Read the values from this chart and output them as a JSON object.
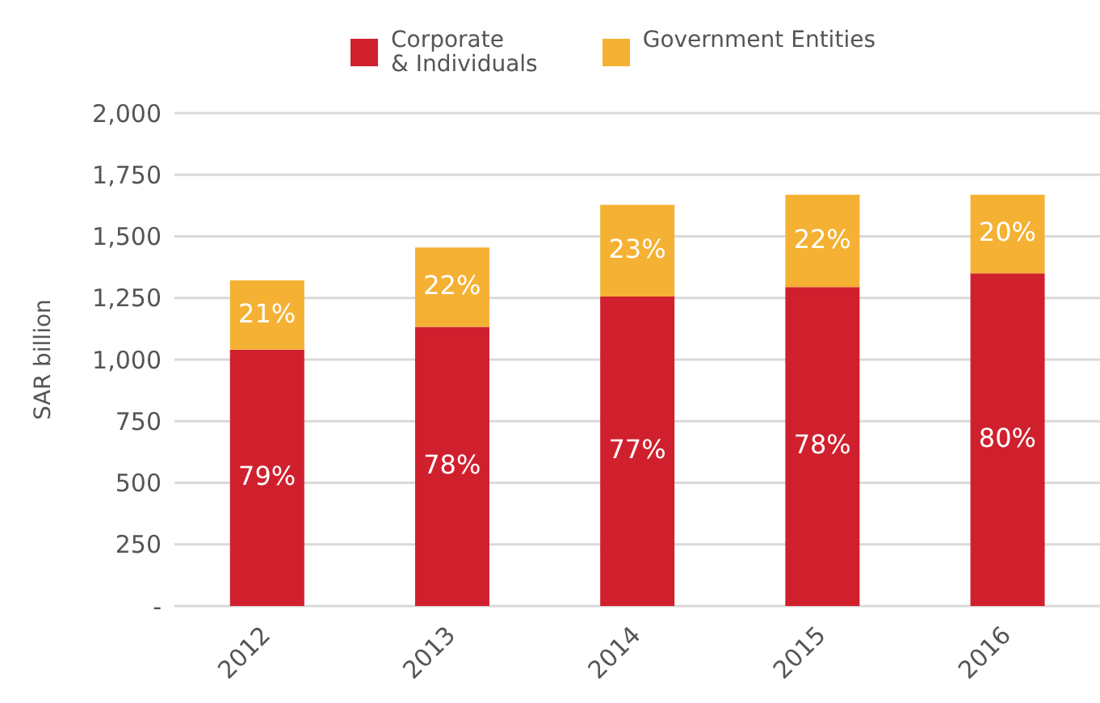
{
  "chart_data": {
    "type": "bar",
    "stacked": true,
    "ylabel": "SAR billion",
    "categories": [
      "2012",
      "2013",
      "2014",
      "2015",
      "2016"
    ],
    "series": [
      {
        "name": "Corporate\n& Individuals",
        "color": "#d0202e",
        "values": [
          1040,
          1133,
          1256,
          1294,
          1350
        ]
      },
      {
        "name": "Government Entities",
        "color": "#f5b133",
        "values": [
          281,
          322,
          372,
          375,
          319
        ]
      }
    ],
    "annotations": [
      "79%",
      "78%",
      "77%",
      "78%",
      "80%",
      "21%",
      "22%",
      "23%",
      "22%",
      "20%"
    ],
    "ylim": [
      0,
      2000
    ],
    "yticks": [
      {
        "value": 0,
        "label": "-"
      },
      {
        "value": 250,
        "label": "250"
      },
      {
        "value": 500,
        "label": "500"
      },
      {
        "value": 750,
        "label": "750"
      },
      {
        "value": 1000,
        "label": "1,000"
      },
      {
        "value": 1250,
        "label": "1,250"
      },
      {
        "value": 1500,
        "label": "1,500"
      },
      {
        "value": 1750,
        "label": "1,750"
      },
      {
        "value": 2000,
        "label": "2,000"
      }
    ],
    "grid": "y",
    "legend": "top"
  }
}
